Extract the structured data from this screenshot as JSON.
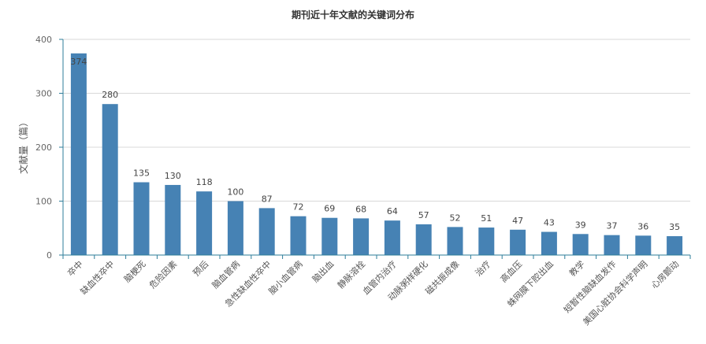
{
  "chart_data": {
    "type": "bar",
    "title": "期刊近十年文献的关键词分布",
    "xlabel": "",
    "ylabel": "文献量（篇）",
    "ylim": [
      0,
      400
    ],
    "yticks": [
      0,
      100,
      200,
      300,
      400
    ],
    "grid": true,
    "bar_color": "#4682b4",
    "categories": [
      "卒中",
      "缺血性卒中",
      "脑梗死",
      "危险因素",
      "预后",
      "脑血管病",
      "急性缺血性卒中",
      "脑小血管病",
      "脑出血",
      "静脉溶栓",
      "血管内治疗",
      "动脉粥样硬化",
      "磁共振成像",
      "治疗",
      "高血压",
      "蛛网膜下腔出血",
      "教学",
      "短暂性脑缺血发作",
      "美国心脏协会科学声明",
      "心房颤动"
    ],
    "values": [
      374,
      280,
      135,
      130,
      118,
      100,
      87,
      72,
      69,
      68,
      64,
      57,
      52,
      51,
      47,
      43,
      39,
      37,
      36,
      35
    ]
  }
}
